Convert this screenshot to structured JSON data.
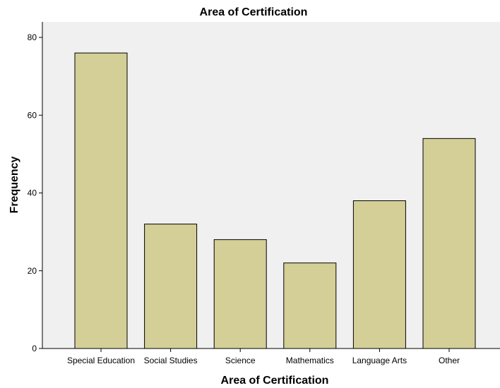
{
  "chart_data": {
    "type": "bar",
    "title": "Area of Certification",
    "xlabel": "Area of Certification",
    "ylabel": "Frequency",
    "categories": [
      "Special Education",
      "Social Studies",
      "Science",
      "Mathematics",
      "Language Arts",
      "Other"
    ],
    "values": [
      76,
      32,
      28,
      22,
      38,
      54
    ],
    "ylim": [
      0,
      84
    ],
    "yticks": [
      0,
      20,
      40,
      60,
      80
    ],
    "grid": false,
    "colors": {
      "bar_fill": "#d3cf97",
      "plot_background": "#f0f0f0",
      "bar_stroke": "#000000"
    }
  }
}
